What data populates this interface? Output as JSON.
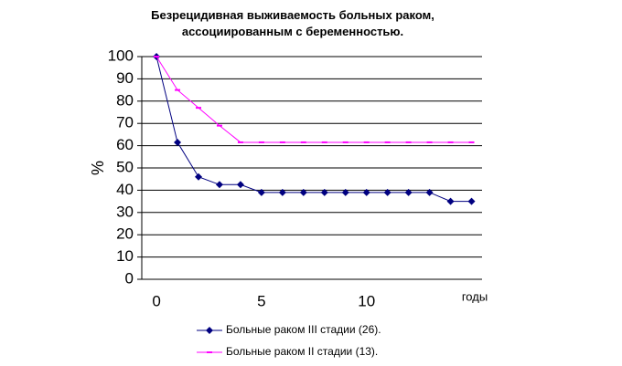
{
  "chart_data": {
    "type": "line",
    "title": "Безрецидивная выживаемость больных раком, ассоциированным с беременностью.",
    "y_label": "%",
    "x_label": "годы",
    "x": [
      0,
      1,
      2,
      3,
      4,
      5,
      6,
      7,
      8,
      9,
      10,
      11,
      12,
      13,
      14,
      15
    ],
    "series": [
      {
        "name": "Больные раком III стадии (26).",
        "color": "#000080",
        "marker": "diamond",
        "values": [
          100,
          61.5,
          46,
          42.5,
          42.5,
          39,
          39,
          39,
          39,
          39,
          39,
          39,
          39,
          39,
          35,
          35
        ]
      },
      {
        "name": "Больные раком II стадии (13).",
        "color": "#ff00ff",
        "marker": "dash",
        "values": [
          100,
          85,
          77,
          69,
          61.5,
          61.5,
          61.5,
          61.5,
          61.5,
          61.5,
          61.5,
          61.5,
          61.5,
          61.5,
          61.5,
          61.5
        ]
      }
    ],
    "xlim": [
      -0.7,
      15.5
    ],
    "xticks": [
      0,
      5,
      10
    ],
    "ylim": [
      0,
      100
    ],
    "yticks": [
      0,
      10,
      20,
      30,
      40,
      50,
      60,
      70,
      80,
      90,
      100
    ],
    "grid": true,
    "legend": "bottom"
  }
}
